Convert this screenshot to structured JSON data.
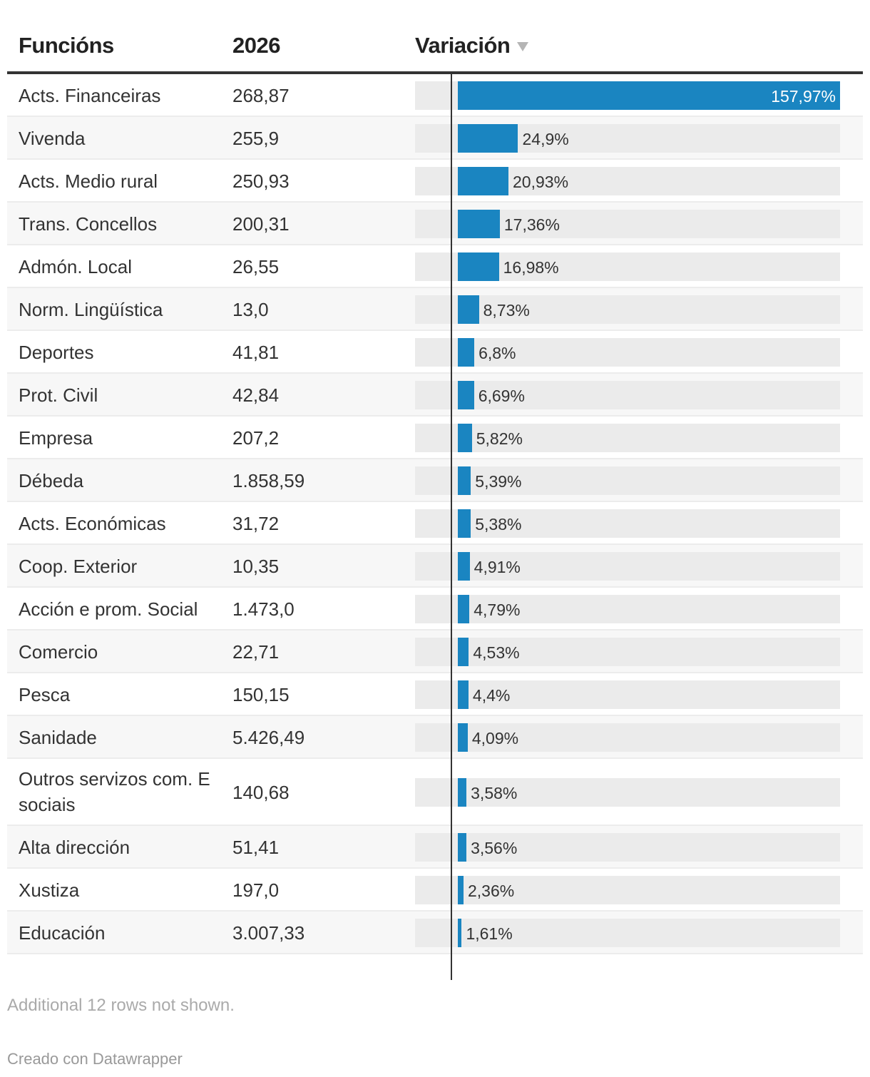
{
  "chart_data": {
    "type": "table",
    "columns": [
      "Funcións",
      "2026",
      "Variación"
    ],
    "sort_column": "Variación",
    "sort_direction": "descending",
    "rows": [
      {
        "label": "Acts. Financeiras",
        "value_2026": "268,87",
        "variation": 157.97,
        "variation_label": "157,97%"
      },
      {
        "label": "Vivenda",
        "value_2026": "255,9",
        "variation": 24.9,
        "variation_label": "24,9%"
      },
      {
        "label": "Acts. Medio rural",
        "value_2026": "250,93",
        "variation": 20.93,
        "variation_label": "20,93%"
      },
      {
        "label": "Trans. Concellos",
        "value_2026": "200,31",
        "variation": 17.36,
        "variation_label": "17,36%"
      },
      {
        "label": "Admón. Local",
        "value_2026": "26,55",
        "variation": 16.98,
        "variation_label": "16,98%"
      },
      {
        "label": "Norm. Lingüística",
        "value_2026": "13,0",
        "variation": 8.73,
        "variation_label": "8,73%"
      },
      {
        "label": "Deportes",
        "value_2026": "41,81",
        "variation": 6.8,
        "variation_label": "6,8%"
      },
      {
        "label": "Prot. Civil",
        "value_2026": "42,84",
        "variation": 6.69,
        "variation_label": "6,69%"
      },
      {
        "label": "Empresa",
        "value_2026": "207,2",
        "variation": 5.82,
        "variation_label": "5,82%"
      },
      {
        "label": "Débeda",
        "value_2026": "1.858,59",
        "variation": 5.39,
        "variation_label": "5,39%"
      },
      {
        "label": "Acts. Económicas",
        "value_2026": "31,72",
        "variation": 5.38,
        "variation_label": "5,38%"
      },
      {
        "label": "Coop. Exterior",
        "value_2026": "10,35",
        "variation": 4.91,
        "variation_label": "4,91%"
      },
      {
        "label": "Acción e prom. Social",
        "value_2026": "1.473,0",
        "variation": 4.79,
        "variation_label": "4,79%"
      },
      {
        "label": "Comercio",
        "value_2026": "22,71",
        "variation": 4.53,
        "variation_label": "4,53%"
      },
      {
        "label": "Pesca",
        "value_2026": "150,15",
        "variation": 4.4,
        "variation_label": "4,4%"
      },
      {
        "label": "Sanidade",
        "value_2026": "5.426,49",
        "variation": 4.09,
        "variation_label": "4,09%"
      },
      {
        "label": "Outros servizos com. E sociais",
        "value_2026": "140,68",
        "variation": 3.58,
        "variation_label": "3,58%"
      },
      {
        "label": "Alta dirección",
        "value_2026": "51,41",
        "variation": 3.56,
        "variation_label": "3,56%"
      },
      {
        "label": "Xustiza",
        "value_2026": "197,0",
        "variation": 2.36,
        "variation_label": "2,36%"
      },
      {
        "label": "Educación",
        "value_2026": "3.007,33",
        "variation": 1.61,
        "variation_label": "1,61%"
      }
    ],
    "bar_range": [
      -18,
      157.97
    ],
    "colors": {
      "bar": "#1a85c1",
      "track": "#ebebeb"
    }
  },
  "header": {
    "col_function": "Funcións",
    "col_year": "2026",
    "col_variation": "Variación"
  },
  "footer": {
    "rows_note": "Additional 12 rows not shown.",
    "credit": "Creado con Datawrapper"
  }
}
